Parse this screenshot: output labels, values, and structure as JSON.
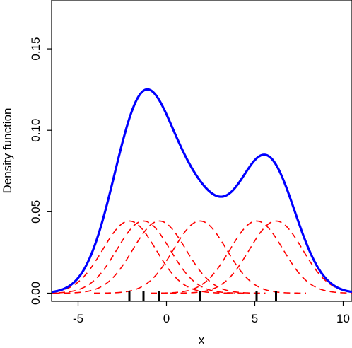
{
  "chart_data": {
    "type": "line",
    "title": "",
    "xlabel": "x",
    "ylabel": "Density function",
    "xlim": [
      -6.5,
      10.5
    ],
    "ylim": [
      -0.005,
      0.18
    ],
    "x_ticks": [
      -5,
      0,
      5,
      10
    ],
    "x_tick_labels": [
      "-5",
      "0",
      "5",
      "10"
    ],
    "y_ticks": [
      0.0,
      0.05,
      0.1,
      0.15
    ],
    "y_tick_labels": [
      "0.00",
      "0.05",
      "0.10",
      "0.15"
    ],
    "grid": false,
    "legend": "none",
    "samples": [
      -2.1,
      -1.3,
      -0.4,
      1.9,
      5.1,
      6.2
    ],
    "kernel_bandwidth": 1.5,
    "series": [
      {
        "role": "kde",
        "style": "solid",
        "color": "#0000ff",
        "x": [
          -6.5,
          -5,
          -4,
          -3,
          -2,
          -1,
          0,
          1,
          2,
          3,
          4,
          5,
          6,
          7,
          8,
          9,
          10,
          10.5
        ],
        "y": [
          0.0014,
          0.007,
          0.0196,
          0.0577,
          0.107,
          0.124,
          0.117,
          0.094,
          0.0746,
          0.0592,
          0.065,
          0.083,
          0.08,
          0.051,
          0.0216,
          0.0064,
          0.0013,
          0.0005
        ]
      },
      {
        "role": "kernel",
        "style": "dashed",
        "color": "#ff0000",
        "center": -2.1,
        "peak": 0.0443
      },
      {
        "role": "kernel",
        "style": "dashed",
        "color": "#ff0000",
        "center": -1.3,
        "peak": 0.0443
      },
      {
        "role": "kernel",
        "style": "dashed",
        "color": "#ff0000",
        "center": -0.4,
        "peak": 0.0443
      },
      {
        "role": "kernel",
        "style": "dashed",
        "color": "#ff0000",
        "center": 1.9,
        "peak": 0.0443
      },
      {
        "role": "kernel",
        "style": "dashed",
        "color": "#ff0000",
        "center": 5.1,
        "peak": 0.0443
      },
      {
        "role": "kernel",
        "style": "dashed",
        "color": "#ff0000",
        "center": 6.2,
        "peak": 0.0443
      }
    ],
    "colors": {
      "kde_line": "#0000ff",
      "kernel_line": "#ff0000",
      "rug": "#000000",
      "axis": "#000000"
    }
  }
}
